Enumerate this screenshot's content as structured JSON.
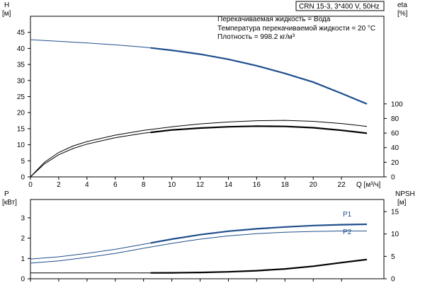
{
  "chart_data": {
    "type": "line",
    "title_box": "CRN 15-3, 3*400 V, 50Hz",
    "annotations": [
      "Перекачиваемая жидкость = Вода",
      "Температура перекачиваемой жидкости = 20 °C",
      "Плотность = 998.2 кг/м³"
    ],
    "top": {
      "y_left_label": [
        "H",
        "[м]"
      ],
      "y_right_label": [
        "eta",
        "[%]"
      ],
      "x_label": "Q [м³/ч]",
      "x_ticks": [
        "0",
        "2",
        "4",
        "6",
        "8",
        "10",
        "12",
        "14",
        "16",
        "18",
        "20",
        "22"
      ],
      "xlim": [
        0,
        25
      ],
      "y_left_ticks": [
        "0",
        "5",
        "10",
        "15",
        "20",
        "25",
        "30",
        "35",
        "40",
        "45"
      ],
      "ylim_left": [
        0,
        50
      ],
      "y_right_ticks": [
        "0",
        "20",
        "40",
        "60",
        "80",
        "100"
      ],
      "ylim_right": [
        0,
        220
      ],
      "series": [
        {
          "axis": "left",
          "color": "#1f4e8c",
          "thin_until": 8.5,
          "x": [
            0,
            2,
            4,
            6,
            8,
            10,
            12,
            14,
            16,
            18,
            20,
            22,
            23.8
          ],
          "y": [
            42.7,
            42.2,
            41.7,
            41.1,
            40.4,
            39.4,
            38.2,
            36.6,
            34.6,
            32.2,
            29.5,
            26.0,
            22.7
          ]
        },
        {
          "axis": "left",
          "color": "#000000",
          "thin_until": 8.5,
          "x": [
            0,
            1,
            2,
            3,
            4,
            6,
            8,
            10,
            12,
            14,
            16,
            18,
            20,
            22,
            23.8
          ],
          "y": [
            0,
            4.1,
            6.9,
            8.8,
            10.2,
            12.2,
            13.6,
            14.6,
            15.2,
            15.6,
            15.8,
            15.7,
            15.3,
            14.5,
            13.6
          ]
        },
        {
          "axis": "left",
          "color": "#000000",
          "thin_until": 24,
          "x": [
            0,
            1,
            2,
            3,
            4,
            6,
            8,
            10,
            12,
            14,
            16,
            18,
            20,
            22,
            23.8
          ],
          "y": [
            0,
            4.6,
            7.6,
            9.6,
            11.0,
            13.0,
            14.5,
            15.6,
            16.5,
            17.1,
            17.5,
            17.6,
            17.3,
            16.6,
            15.7
          ]
        }
      ]
    },
    "bottom": {
      "y_left_label": [
        "P",
        "[кВт]"
      ],
      "y_right_label": [
        "NPSH",
        "[м]"
      ],
      "y_left_ticks": [
        "0",
        "1",
        "2",
        "3"
      ],
      "ylim_left": [
        0,
        3.9
      ],
      "y_right_ticks": [
        "0",
        "5",
        "10",
        "15"
      ],
      "ylim_right": [
        0,
        17.7
      ],
      "series": [
        {
          "name": "P1",
          "axis": "left",
          "color": "#1f4e8c",
          "thin_until": 8.5,
          "x": [
            0,
            2,
            4,
            6,
            8,
            10,
            12,
            14,
            16,
            18,
            20,
            22,
            23.8
          ],
          "y": [
            0.97,
            1.08,
            1.25,
            1.45,
            1.7,
            1.95,
            2.17,
            2.34,
            2.46,
            2.55,
            2.62,
            2.66,
            2.68
          ]
        },
        {
          "name": "P2",
          "axis": "left",
          "color": "#1f4e8c",
          "thin_until": 24,
          "x": [
            0,
            2,
            4,
            6,
            8,
            10,
            12,
            14,
            16,
            18,
            20,
            22,
            23.8
          ],
          "y": [
            0.77,
            0.88,
            1.05,
            1.25,
            1.5,
            1.74,
            1.95,
            2.11,
            2.22,
            2.29,
            2.33,
            2.35,
            2.35
          ]
        },
        {
          "axis": "right",
          "color": "#000000",
          "thin_until": 8.5,
          "x": [
            0,
            2,
            4,
            6,
            8,
            10,
            12,
            14,
            16,
            18,
            20,
            22,
            23.8
          ],
          "y": [
            1.3,
            1.3,
            1.3,
            1.3,
            1.3,
            1.33,
            1.4,
            1.55,
            1.8,
            2.2,
            2.8,
            3.6,
            4.3
          ]
        }
      ]
    }
  }
}
